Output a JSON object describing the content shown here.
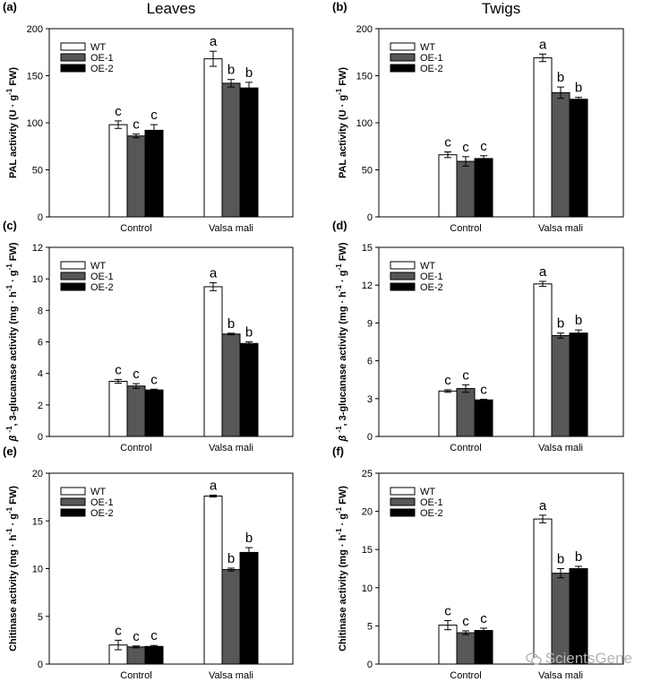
{
  "chart_data": [
    {
      "panel": "(a)",
      "title": "Leaves",
      "type": "bar",
      "ylabel": "PAL activity (U · g-1 FW)",
      "ylim": [
        0,
        200
      ],
      "yticks": [
        0,
        50,
        100,
        150,
        200
      ],
      "categories": [
        "Control",
        "Valsa mali"
      ],
      "series": [
        {
          "name": "WT",
          "values": [
            98,
            168
          ],
          "errors": [
            4,
            8
          ],
          "letters": [
            "c",
            "a"
          ]
        },
        {
          "name": "OE-1",
          "values": [
            86,
            142
          ],
          "errors": [
            2,
            4
          ],
          "letters": [
            "c",
            "b"
          ]
        },
        {
          "name": "OE-2",
          "values": [
            92,
            137
          ],
          "errors": [
            6,
            6
          ],
          "letters": [
            "c",
            "b"
          ]
        }
      ],
      "legend_position": "top-left"
    },
    {
      "panel": "(b)",
      "title": "Twigs",
      "type": "bar",
      "ylabel": "PAL activity (U · g-1 FW)",
      "ylim": [
        0,
        200
      ],
      "yticks": [
        0,
        50,
        100,
        150,
        200
      ],
      "categories": [
        "Control",
        "Valsa mali"
      ],
      "series": [
        {
          "name": "WT",
          "values": [
            66,
            169
          ],
          "errors": [
            3,
            4
          ],
          "letters": [
            "c",
            "a"
          ]
        },
        {
          "name": "OE-1",
          "values": [
            59,
            132
          ],
          "errors": [
            5,
            6
          ],
          "letters": [
            "c",
            "b"
          ]
        },
        {
          "name": "OE-2",
          "values": [
            62,
            125
          ],
          "errors": [
            3,
            2
          ],
          "letters": [
            "c",
            "b"
          ]
        }
      ],
      "legend_position": "top-left"
    },
    {
      "panel": "(c)",
      "title": "",
      "type": "bar",
      "ylabel": "β -1, 3-glucanase activity (mg · h-1 · g-1 FW)",
      "ylim": [
        0,
        12
      ],
      "yticks": [
        0,
        2,
        4,
        6,
        8,
        10,
        12
      ],
      "categories": [
        "Control",
        "Valsa mali"
      ],
      "series": [
        {
          "name": "WT",
          "values": [
            3.5,
            9.5
          ],
          "errors": [
            0.12,
            0.25
          ],
          "letters": [
            "c",
            "a"
          ]
        },
        {
          "name": "OE-1",
          "values": [
            3.2,
            6.5
          ],
          "errors": [
            0.15,
            0.05
          ],
          "letters": [
            "c",
            "b"
          ]
        },
        {
          "name": "OE-2",
          "values": [
            2.95,
            5.9
          ],
          "errors": [
            0.05,
            0.1
          ],
          "letters": [
            "c",
            "b"
          ]
        }
      ],
      "legend_position": "top-left"
    },
    {
      "panel": "(d)",
      "title": "",
      "type": "bar",
      "ylabel": "β -1, 3-glucanase activity (mg · h-1 · g-1 FW)",
      "ylim": [
        0,
        15
      ],
      "yticks": [
        0,
        3,
        6,
        9,
        12,
        15
      ],
      "categories": [
        "Control",
        "Valsa mali"
      ],
      "series": [
        {
          "name": "WT",
          "values": [
            3.6,
            12.1
          ],
          "errors": [
            0.1,
            0.2
          ],
          "letters": [
            "c",
            "a"
          ]
        },
        {
          "name": "OE-1",
          "values": [
            3.8,
            8.0
          ],
          "errors": [
            0.3,
            0.2
          ],
          "letters": [
            "c",
            "b"
          ]
        },
        {
          "name": "OE-2",
          "values": [
            2.9,
            8.2
          ],
          "errors": [
            0.05,
            0.25
          ],
          "letters": [
            "c",
            "b"
          ]
        }
      ],
      "legend_position": "top-left"
    },
    {
      "panel": "(e)",
      "title": "",
      "type": "bar",
      "ylabel": "Chitinase activity (mg · h-1 · g-1 FW)",
      "ylim": [
        0,
        20
      ],
      "yticks": [
        0,
        5,
        10,
        15,
        20
      ],
      "categories": [
        "Control",
        "Valsa mali"
      ],
      "series": [
        {
          "name": "WT",
          "values": [
            2.0,
            17.6
          ],
          "errors": [
            0.5,
            0.1
          ],
          "letters": [
            "c",
            "a"
          ]
        },
        {
          "name": "OE-1",
          "values": [
            1.8,
            9.9
          ],
          "errors": [
            0.1,
            0.15
          ],
          "letters": [
            "c",
            "b"
          ]
        },
        {
          "name": "OE-2",
          "values": [
            1.85,
            11.7
          ],
          "errors": [
            0.1,
            0.5
          ],
          "letters": [
            "c",
            "b"
          ]
        }
      ],
      "legend_position": "top-left"
    },
    {
      "panel": "(f)",
      "title": "",
      "type": "bar",
      "ylabel": "Chitinase activity (mg · h-1 · g-1 FW)",
      "ylim": [
        0,
        25
      ],
      "yticks": [
        0,
        5,
        10,
        15,
        20,
        25
      ],
      "categories": [
        "Control",
        "Valsa mali"
      ],
      "series": [
        {
          "name": "WT",
          "values": [
            5.1,
            19.0
          ],
          "errors": [
            0.6,
            0.5
          ],
          "letters": [
            "c",
            "a"
          ]
        },
        {
          "name": "OE-1",
          "values": [
            4.1,
            11.9
          ],
          "errors": [
            0.25,
            0.6
          ],
          "letters": [
            "c",
            "b"
          ]
        },
        {
          "name": "OE-2",
          "values": [
            4.4,
            12.5
          ],
          "errors": [
            0.3,
            0.3
          ],
          "letters": [
            "c",
            "b"
          ]
        }
      ],
      "legend_position": "top-left"
    }
  ],
  "colors": {
    "WT": "#ffffff",
    "OE-1": "#575757",
    "OE-2": "#000000"
  },
  "watermark": {
    "text": "ScientsGene",
    "icon": "wechat-icon"
  }
}
